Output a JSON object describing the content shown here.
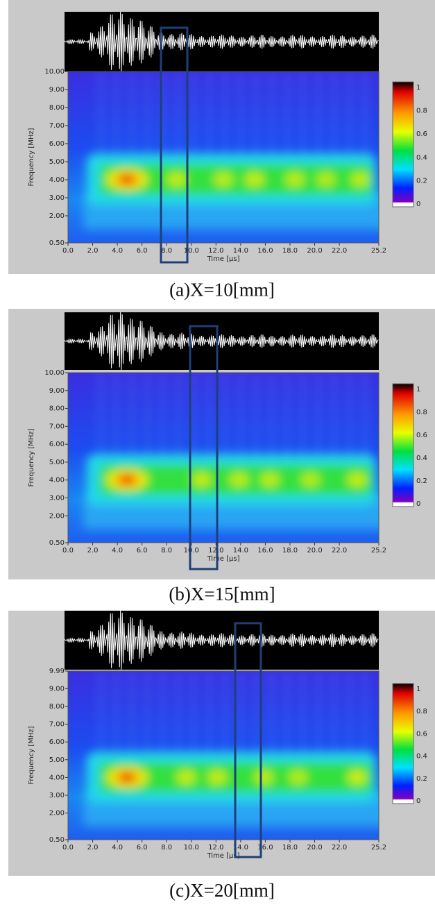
{
  "panels": [
    {
      "caption": "(a)X=10[mm]",
      "y_label": "Frequency [MHz]",
      "x_label": "Time [μs]",
      "y_ticks": [
        "10.00",
        "9.00",
        "8.00",
        "7.00",
        "6.00",
        "5.00",
        "4.00",
        "3.00",
        "2.00",
        "0.50"
      ],
      "x_ticks": [
        "0.0",
        "2.0",
        "4.0",
        "6.0",
        "8.0",
        "10.0",
        "12.0",
        "14.0",
        "16.0",
        "18.0",
        "20.0",
        "22.0",
        "25.2"
      ],
      "colorbar_ticks": [
        "1",
        "0.8",
        "0.6",
        "0.4",
        "0.2",
        "0"
      ]
    },
    {
      "caption": "(b)X=15[mm]",
      "y_label": "Frequency [MHz]",
      "x_label": "Time [μs]",
      "y_ticks": [
        "10.00",
        "9.00",
        "8.00",
        "7.00",
        "6.00",
        "5.00",
        "4.00",
        "3.00",
        "2.00",
        "0.50"
      ],
      "x_ticks": [
        "0.0",
        "2.0",
        "4.0",
        "6.0",
        "8.0",
        "10.0",
        "12.0",
        "14.0",
        "16.0",
        "18.0",
        "20.0",
        "22.0",
        "25.2"
      ],
      "colorbar_ticks": [
        "1",
        "0.8",
        "0.6",
        "0.4",
        "0.2",
        "0"
      ]
    },
    {
      "caption": "(c)X=20[mm]",
      "y_label": "Frequency [MHz]",
      "x_label": "Time [μs]",
      "y_ticks": [
        "9.99",
        "9.00",
        "8.00",
        "7.00",
        "6.00",
        "5.00",
        "4.00",
        "3.00",
        "2.00",
        "0.50"
      ],
      "x_ticks": [
        "0.0",
        "2.0",
        "4.0",
        "6.0",
        "8.0",
        "10.0",
        "12.0",
        "14.0",
        "16.0",
        "18.0",
        "20.0",
        "22.0",
        "25.2"
      ],
      "colorbar_ticks": [
        "1",
        "0.8",
        "0.6",
        "0.4",
        "0.2",
        "0"
      ]
    }
  ]
}
